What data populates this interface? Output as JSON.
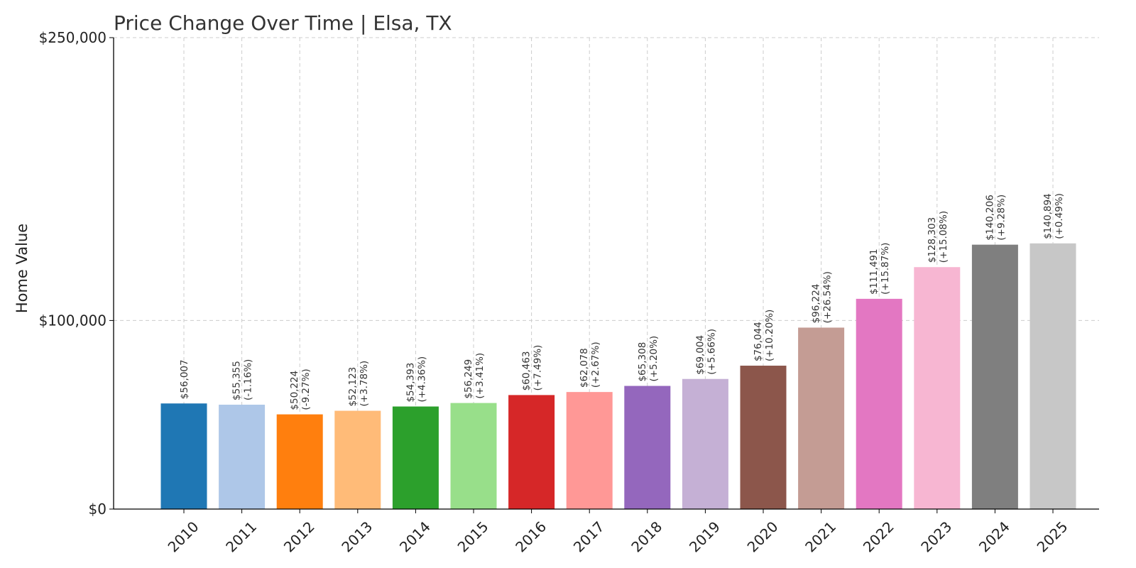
{
  "chart_data": {
    "type": "bar",
    "title": "Price Change Over Time | Elsa, TX",
    "xlabel": "",
    "ylabel": "Home Value",
    "ylim": [
      0,
      250000
    ],
    "yticks": [
      0,
      100000,
      250000
    ],
    "ytick_labels": [
      "$0",
      "$100,000",
      "$250,000"
    ],
    "grid": true,
    "categories": [
      "2010",
      "2011",
      "2012",
      "2013",
      "2014",
      "2015",
      "2016",
      "2017",
      "2018",
      "2019",
      "2020",
      "2021",
      "2022",
      "2023",
      "2024",
      "2025"
    ],
    "values": [
      56007,
      55355,
      50224,
      52123,
      54393,
      56249,
      60463,
      62078,
      65308,
      69004,
      76044,
      96224,
      111491,
      128303,
      140206,
      140894
    ],
    "value_labels": [
      "$56,007",
      "$55,355",
      "$50,224",
      "$52,123",
      "$54,393",
      "$56,249",
      "$60,463",
      "$62,078",
      "$65,308",
      "$69,004",
      "$76,044",
      "$96,224",
      "$111,491",
      "$128,303",
      "$140,206",
      "$140,894"
    ],
    "change_labels": [
      "",
      "(-1.16%)",
      "(-9.27%)",
      "(+3.78%)",
      "(+4.36%)",
      "(+3.41%)",
      "(+7.49%)",
      "(+2.67%)",
      "(+5.20%)",
      "(+5.66%)",
      "(+10.20%)",
      "(+26.54%)",
      "(+15.87%)",
      "(+15.08%)",
      "(+9.28%)",
      "(+0.49%)"
    ],
    "colors": [
      "#1f77b4",
      "#aec7e8",
      "#ff7f0e",
      "#ffbb78",
      "#2ca02c",
      "#98df8a",
      "#d62728",
      "#ff9896",
      "#9467bd",
      "#c5b0d5",
      "#8c564b",
      "#c49c94",
      "#e377c2",
      "#f7b6d2",
      "#7f7f7f",
      "#c7c7c7"
    ]
  }
}
